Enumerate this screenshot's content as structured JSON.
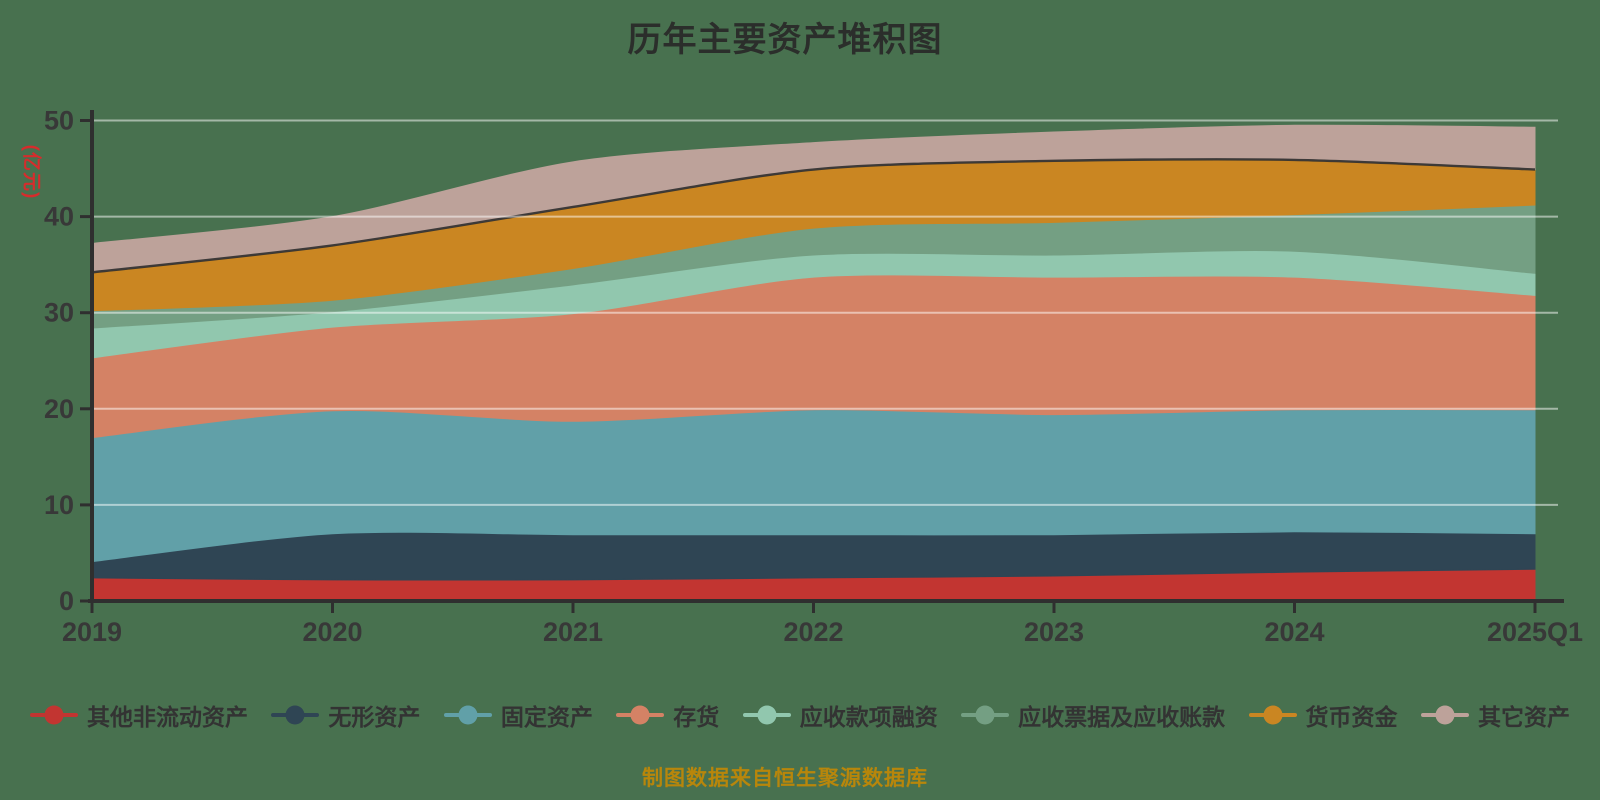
{
  "header": {
    "title": "历年主要资产堆积图"
  },
  "chart_data": {
    "type": "area",
    "stacked": true,
    "smooth": true,
    "title": "历年主要资产堆积图",
    "y_axis_name": "(亿元)",
    "xlabel": "",
    "ylabel": "(亿元)",
    "categories": [
      "2019",
      "2020",
      "2021",
      "2022",
      "2023",
      "2024",
      "2025Q1"
    ],
    "ylim": [
      0,
      50
    ],
    "yticks": [
      0,
      10,
      20,
      30,
      40,
      50
    ],
    "grid": true,
    "legend_position": "bottom",
    "series": [
      {
        "name": "其他非流动资产",
        "color": "#c23531",
        "values": [
          2.4,
          2.2,
          2.2,
          2.4,
          2.6,
          3.0,
          3.3
        ]
      },
      {
        "name": "无形资产",
        "color": "#2f4554",
        "values": [
          1.7,
          4.8,
          4.7,
          4.5,
          4.3,
          4.2,
          3.7
        ]
      },
      {
        "name": "固定资产",
        "color": "#61a0a8",
        "values": [
          12.9,
          12.8,
          11.8,
          13.0,
          12.5,
          12.7,
          12.9
        ]
      },
      {
        "name": "存货",
        "color": "#d48265",
        "values": [
          8.3,
          8.7,
          11.2,
          13.8,
          14.3,
          13.8,
          11.9
        ]
      },
      {
        "name": "应收款项融资",
        "color": "#91c7ae",
        "values": [
          3.1,
          1.6,
          3.0,
          2.3,
          2.3,
          2.7,
          2.3
        ]
      },
      {
        "name": "应收票据及应收账款",
        "color": "#749f83",
        "values": [
          1.8,
          1.2,
          1.7,
          2.8,
          3.4,
          3.8,
          7.1
        ]
      },
      {
        "name": "货币资金",
        "color": "#ca8622",
        "values": [
          4.0,
          5.7,
          6.4,
          6.1,
          6.4,
          5.7,
          3.7
        ]
      },
      {
        "name": "其它资产",
        "color": "#bda29a",
        "values": [
          3.0,
          3.0,
          4.7,
          2.8,
          3.0,
          3.6,
          4.4
        ]
      }
    ]
  },
  "footer": {
    "source_note": "制图数据来自恒生聚源数据库"
  },
  "colors": {
    "background": "#48714F",
    "title": "#2b2e2b",
    "axis": "#2f2f2f",
    "tick_label": "#383838",
    "grid": "rgba(255,255,255,0.5)",
    "y_name": "#d62c2c",
    "legend_label": "#333333",
    "source_note": "#b8860b"
  }
}
